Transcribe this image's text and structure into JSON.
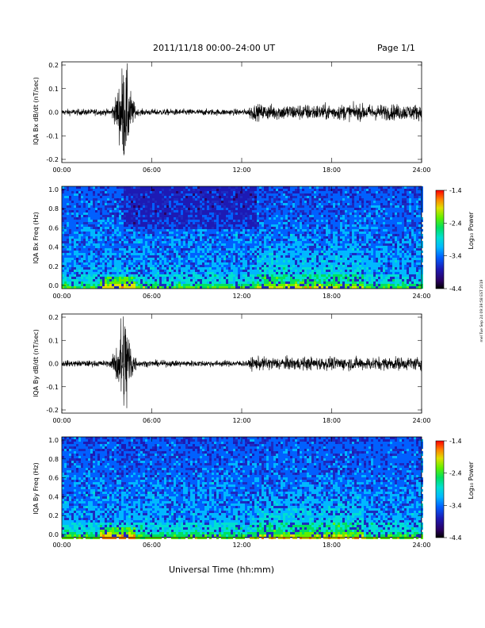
{
  "header": {
    "title": "2011/11/18   00:00–24:00 UT",
    "page": "Page 1/1"
  },
  "footer": {
    "xlabel": "Universal Time (hh:mm)",
    "side_note": "mel Tue Sep 24 09:39:58 EST 2019"
  },
  "colors": {
    "trace": "#000000",
    "colormap": [
      "#000000",
      "#2a0060",
      "#1d1ab4",
      "#0060ff",
      "#00b8ff",
      "#00e0d0",
      "#00e060",
      "#60f000",
      "#e0e000",
      "#ff8000",
      "#ff0000"
    ]
  },
  "chart_data": [
    {
      "type": "line",
      "ylabel": "IQA Bx dB/dt (nT/sec)",
      "x_ticks": [
        "00:00",
        "06:00",
        "12:00",
        "18:00",
        "24:00"
      ],
      "xlim": [
        0,
        24
      ],
      "ylim": [
        -0.2,
        0.2
      ],
      "y_ticks": [
        "0.2",
        "0.1",
        "0.0",
        "-0.1",
        "-0.2"
      ],
      "description_values": {
        "baseline": 0.0,
        "quiet_amplitude": 0.012,
        "burst_start_hour": 3.3,
        "burst_end_hour": 5.0,
        "burst_peak": 0.17,
        "active_start_hour": 12.5,
        "active_amplitude": 0.03
      }
    },
    {
      "type": "heatmap",
      "ylabel": "IQA Bx Freq (Hz)",
      "x_ticks": [
        "00:00",
        "06:00",
        "12:00",
        "18:00",
        "24:00"
      ],
      "xlim": [
        0,
        24
      ],
      "ylim": [
        0.0,
        1.0
      ],
      "y_ticks": [
        "1.0",
        "0.8",
        "0.6",
        "0.4",
        "0.2",
        "0.0"
      ],
      "colorbar": {
        "label": "Log₁₀ Power",
        "ticks": [
          "-1.4",
          "-2.4",
          "-3.4",
          "-4.4"
        ],
        "range": [
          -4.4,
          -1.4
        ]
      }
    },
    {
      "type": "line",
      "ylabel": "IQA By dB/dt (nT/sec)",
      "x_ticks": [
        "00:00",
        "06:00",
        "12:00",
        "18:00",
        "24:00"
      ],
      "xlim": [
        0,
        24
      ],
      "ylim": [
        -0.2,
        0.2
      ],
      "y_ticks": [
        "0.2",
        "0.1",
        "0.0",
        "-0.1",
        "-0.2"
      ],
      "description_values": {
        "baseline": 0.0,
        "quiet_amplitude": 0.012,
        "burst_start_hour": 3.3,
        "burst_end_hour": 5.0,
        "burst_peak": 0.2,
        "active_start_hour": 12.5,
        "active_amplitude": 0.025
      }
    },
    {
      "type": "heatmap",
      "ylabel": "IQA By Freq (Hz)",
      "x_ticks": [
        "00:00",
        "06:00",
        "12:00",
        "18:00",
        "24:00"
      ],
      "xlim": [
        0,
        24
      ],
      "ylim": [
        0.0,
        1.0
      ],
      "y_ticks": [
        "1.0",
        "0.8",
        "0.6",
        "0.4",
        "0.2",
        "0.0"
      ],
      "colorbar": {
        "label": "Log₁₀ Power",
        "ticks": [
          "-1.4",
          "-2.4",
          "-3.4",
          "-4.4"
        ],
        "range": [
          -4.4,
          -1.4
        ]
      }
    }
  ]
}
